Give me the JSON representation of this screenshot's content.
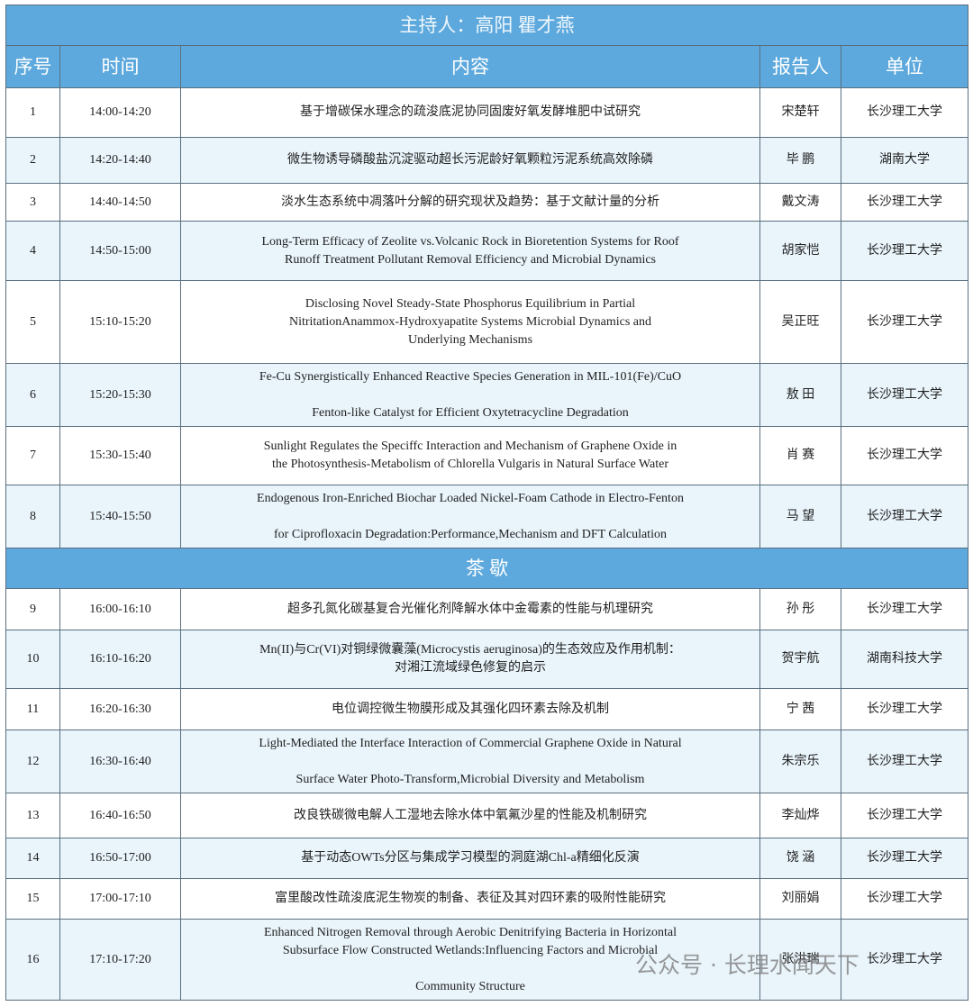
{
  "header": {
    "title": "主持人：高阳 瞿才燕"
  },
  "table": {
    "columns": [
      "序号",
      "时间",
      "内容",
      "报告人",
      "单位"
    ],
    "groups": [
      {
        "rows": [
          [
            "1",
            "14:00-14:20",
            "基于增碳保水理念的疏浚底泥协同固废好氧发酵堆肥中试研究",
            "宋楚轩",
            "长沙理工大学"
          ],
          [
            "2",
            "14:20-14:40",
            "微生物诱导磷酸盐沉淀驱动超长污泥龄好氧颗粒污泥系统高效除磷",
            "毕 鹏",
            "湖南大学"
          ],
          [
            "3",
            "14:40-14:50",
            "淡水生态系统中凋落叶分解的研究现状及趋势：基于文献计量的分析",
            "戴文涛",
            "长沙理工大学"
          ],
          [
            "4",
            "14:50-15:00",
            "Long-Term Efficacy of Zeolite vs.Volcanic Rock in Bioretention Systems for Roof\nRunoff Treatment Pollutant Removal Efficiency and Microbial Dynamics",
            "胡家恺",
            "长沙理工大学"
          ],
          [
            "5",
            "15:10-15:20",
            "Disclosing Novel Steady-State Phosphorus Equilibrium in Partial\nNitritationAnammox-Hydroxyapatite Systems Microbial Dynamics and\nUnderlying Mechanisms",
            "吴正旺",
            "长沙理工大学"
          ],
          [
            "6",
            "15:20-15:30",
            "Fe-Cu Synergistically Enhanced Reactive Species Generation in MIL-101(Fe)/CuO\n\nFenton-like Catalyst for Efficient Oxytetracycline Degradation",
            "敖 田",
            "长沙理工大学"
          ],
          [
            "7",
            "15:30-15:40",
            "Sunlight Regulates the Speciffc Interaction and Mechanism of Graphene Oxide in\nthe Photosynthesis-Metabolism of Chlorella Vulgaris in Natural Surface Water",
            "肖 赛",
            "长沙理工大学"
          ],
          [
            "8",
            "15:40-15:50",
            "Endogenous Iron-Enriched Biochar Loaded Nickel-Foam Cathode in Electro-Fenton\n\nfor Ciprofloxacin Degradation:Performance,Mechanism and DFT Calculation",
            "马 望",
            "长沙理工大学"
          ]
        ]
      },
      {
        "title": "茶 歇",
        "rows": [
          [
            "9",
            "16:00-16:10",
            "超多孔氮化碳基复合光催化剂降解水体中金霉素的性能与机理研究",
            "孙 彤",
            "长沙理工大学"
          ],
          [
            "10",
            "16:10-16:20",
            "Mn(II)与Cr(VI)对铜绿微囊藻(Microcystis aeruginosa)的生态效应及作用机制：\n对湘江流域绿色修复的启示",
            "贺宇航",
            "湖南科技大学"
          ],
          [
            "11",
            "16:20-16:30",
            "电位调控微生物膜形成及其强化四环素去除及机制",
            "宁 茜",
            "长沙理工大学"
          ],
          [
            "12",
            "16:30-16:40",
            "Light-Mediated the Interface Interaction of Commercial Graphene Oxide in Natural\n\nSurface Water Photo-Transform,Microbial Diversity and Metabolism",
            "朱宗乐",
            "长沙理工大学"
          ],
          [
            "13",
            "16:40-16:50",
            "改良铁碳微电解人工湿地去除水体中氧氟沙星的性能及机制研究",
            "李灿烨",
            "长沙理工大学"
          ],
          [
            "14",
            "16:50-17:00",
            "基于动态OWTs分区与集成学习模型的洞庭湖Chl-a精细化反演",
            "饶 涵",
            "长沙理工大学"
          ],
          [
            "15",
            "17:00-17:10",
            "富里酸改性疏浚底泥生物炭的制备、表征及其对四环素的吸附性能研究",
            "刘丽娟",
            "长沙理工大学"
          ],
          [
            "16",
            "17:10-17:20",
            "Enhanced Nitrogen Removal through Aerobic Denitrifying Bacteria in Horizontal\nSubsurface Flow Constructed Wetlands:Influencing Factors and Microbial\n\nCommunity Structure",
            "张洪瑞",
            "长沙理工大学"
          ]
        ]
      }
    ]
  },
  "watermark": "公众号 · 长理水闻天下"
}
